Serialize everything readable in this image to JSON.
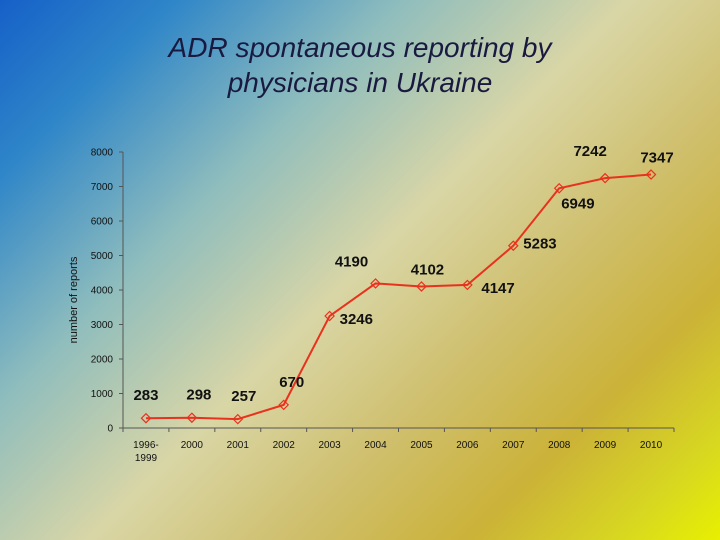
{
  "chart_data": {
    "type": "line",
    "title_lines": [
      "ADR spontaneous reporting by",
      "physicians in Ukraine"
    ],
    "xlabel": "",
    "ylabel": "number of reports",
    "categories": [
      "1996-1999",
      "2000",
      "2001",
      "2002",
      "2003",
      "2004",
      "2005",
      "2006",
      "2007",
      "2008",
      "2009",
      "2010"
    ],
    "series": [
      {
        "values": [
          283,
          298,
          257,
          670,
          3246,
          4190,
          4102,
          4147,
          5283,
          6949,
          7242,
          7347
        ]
      }
    ],
    "data_labels": [
      "283",
      "298",
      "257",
      "670",
      "3246",
      "4190",
      "4102",
      "4147",
      "5283",
      "6949",
      "7242",
      "7347"
    ],
    "yticks": [
      0,
      1000,
      2000,
      3000,
      4000,
      5000,
      6000,
      7000,
      8000
    ],
    "ylim": [
      0,
      8000
    ],
    "grid": false,
    "legend": "none",
    "line_color": "#e8321e",
    "marker": "diamond-open"
  }
}
